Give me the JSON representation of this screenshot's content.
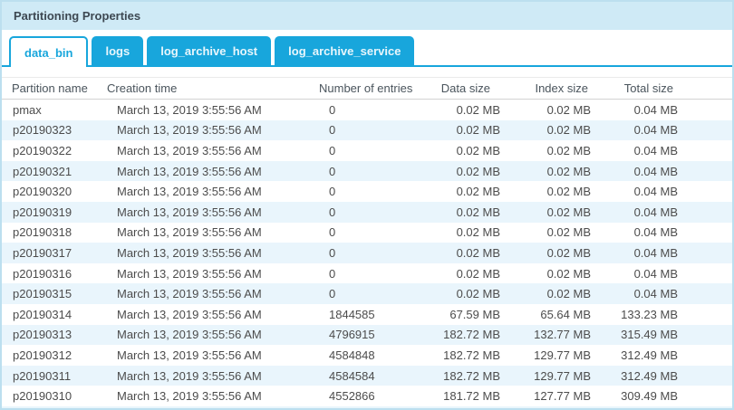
{
  "panel": {
    "title": "Partitioning Properties"
  },
  "tabs": [
    {
      "label": "data_bin",
      "active": true
    },
    {
      "label": "logs",
      "active": false
    },
    {
      "label": "log_archive_host",
      "active": false
    },
    {
      "label": "log_archive_service",
      "active": false
    }
  ],
  "table": {
    "columns": [
      "Partition name",
      "Creation time",
      "Number of entries",
      "Data size",
      "Index size",
      "Total size"
    ],
    "rows": [
      [
        "pmax",
        "March 13, 2019 3:55:56 AM",
        "0",
        "0.02 MB",
        "0.02 MB",
        "0.04 MB"
      ],
      [
        "p20190323",
        "March 13, 2019 3:55:56 AM",
        "0",
        "0.02 MB",
        "0.02 MB",
        "0.04 MB"
      ],
      [
        "p20190322",
        "March 13, 2019 3:55:56 AM",
        "0",
        "0.02 MB",
        "0.02 MB",
        "0.04 MB"
      ],
      [
        "p20190321",
        "March 13, 2019 3:55:56 AM",
        "0",
        "0.02 MB",
        "0.02 MB",
        "0.04 MB"
      ],
      [
        "p20190320",
        "March 13, 2019 3:55:56 AM",
        "0",
        "0.02 MB",
        "0.02 MB",
        "0.04 MB"
      ],
      [
        "p20190319",
        "March 13, 2019 3:55:56 AM",
        "0",
        "0.02 MB",
        "0.02 MB",
        "0.04 MB"
      ],
      [
        "p20190318",
        "March 13, 2019 3:55:56 AM",
        "0",
        "0.02 MB",
        "0.02 MB",
        "0.04 MB"
      ],
      [
        "p20190317",
        "March 13, 2019 3:55:56 AM",
        "0",
        "0.02 MB",
        "0.02 MB",
        "0.04 MB"
      ],
      [
        "p20190316",
        "March 13, 2019 3:55:56 AM",
        "0",
        "0.02 MB",
        "0.02 MB",
        "0.04 MB"
      ],
      [
        "p20190315",
        "March 13, 2019 3:55:56 AM",
        "0",
        "0.02 MB",
        "0.02 MB",
        "0.04 MB"
      ],
      [
        "p20190314",
        "March 13, 2019 3:55:56 AM",
        "1844585",
        "67.59 MB",
        "65.64 MB",
        "133.23 MB"
      ],
      [
        "p20190313",
        "March 13, 2019 3:55:56 AM",
        "4796915",
        "182.72 MB",
        "132.77 MB",
        "315.49 MB"
      ],
      [
        "p20190312",
        "March 13, 2019 3:55:56 AM",
        "4584848",
        "182.72 MB",
        "129.77 MB",
        "312.49 MB"
      ],
      [
        "p20190311",
        "March 13, 2019 3:55:56 AM",
        "4584584",
        "182.72 MB",
        "129.77 MB",
        "312.49 MB"
      ],
      [
        "p20190310",
        "March 13, 2019 3:55:56 AM",
        "4552866",
        "181.72 MB",
        "127.77 MB",
        "309.49 MB"
      ]
    ]
  },
  "colors": {
    "accent_blue": "#18a6dc",
    "titlebar_bg": "#cfeaf6",
    "row_stripe": "#e9f5fc",
    "panel_border": "#bcdfef"
  }
}
